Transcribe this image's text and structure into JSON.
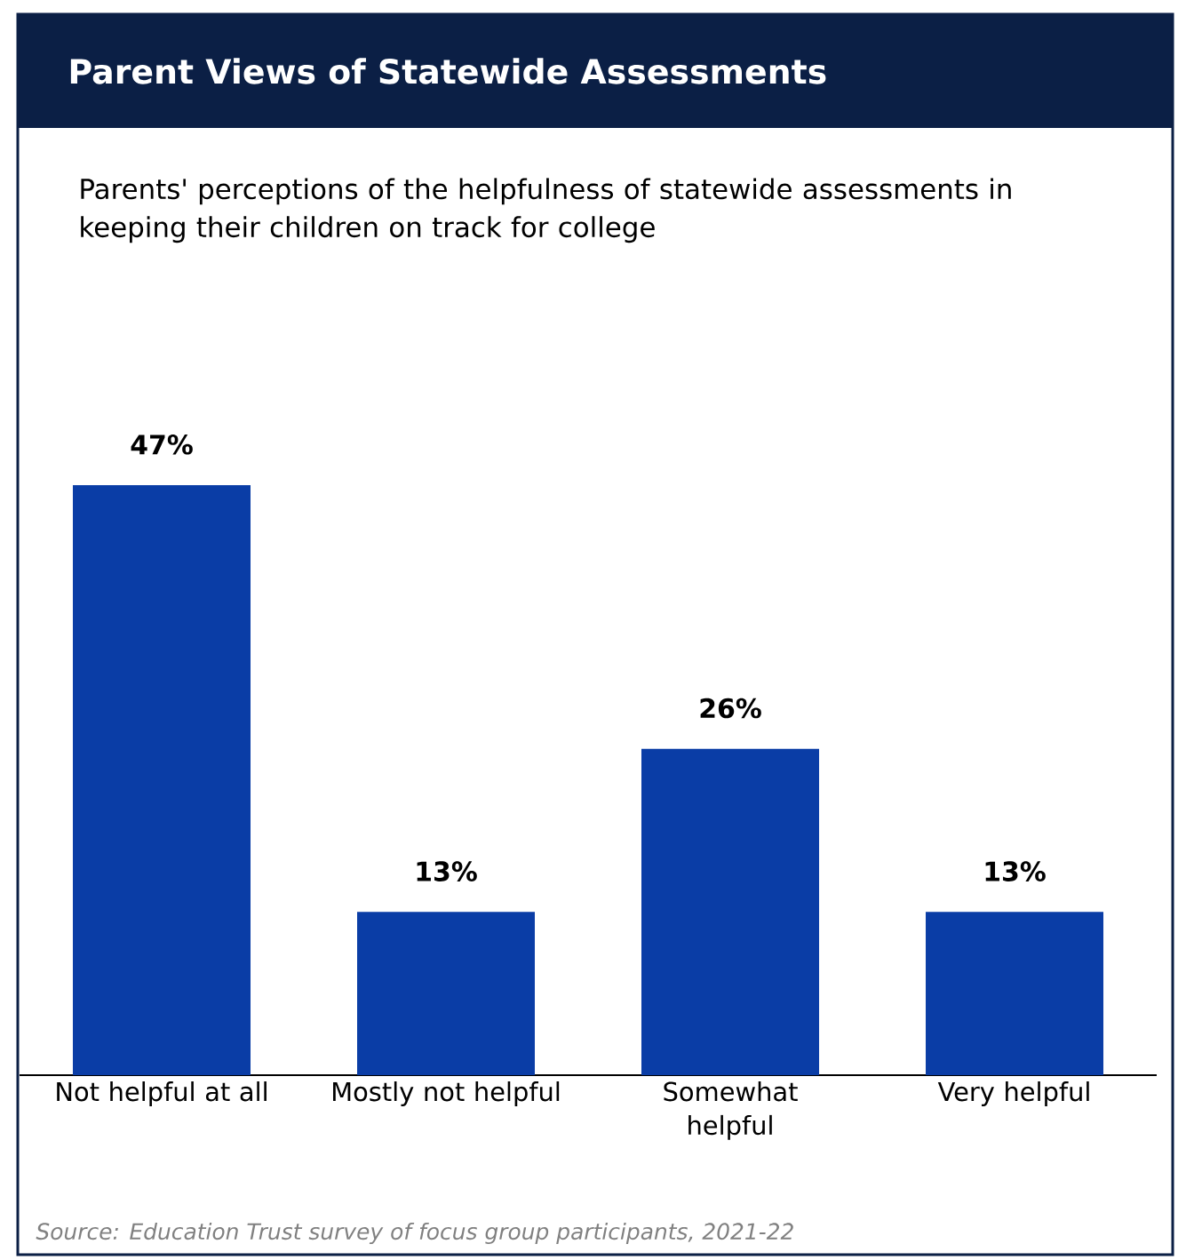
{
  "chart_data": {
    "type": "bar",
    "title": "Parent Views of Statewide Assessments",
    "subtitle": "Parents' perceptions of the helpfulness of statewide assessments in keeping their children on track for college",
    "categories": [
      "Not helpful at all",
      "Mostly not helpful",
      "Somewhat helpful",
      "Very helpful"
    ],
    "values": [
      47,
      13,
      26,
      13
    ],
    "value_labels": [
      "47%",
      "13%",
      "26%",
      "13%"
    ],
    "color": "#0a3da6",
    "annotations": [
      "Source: Education Trust survey of focus group participants, 2021-22"
    ]
  }
}
